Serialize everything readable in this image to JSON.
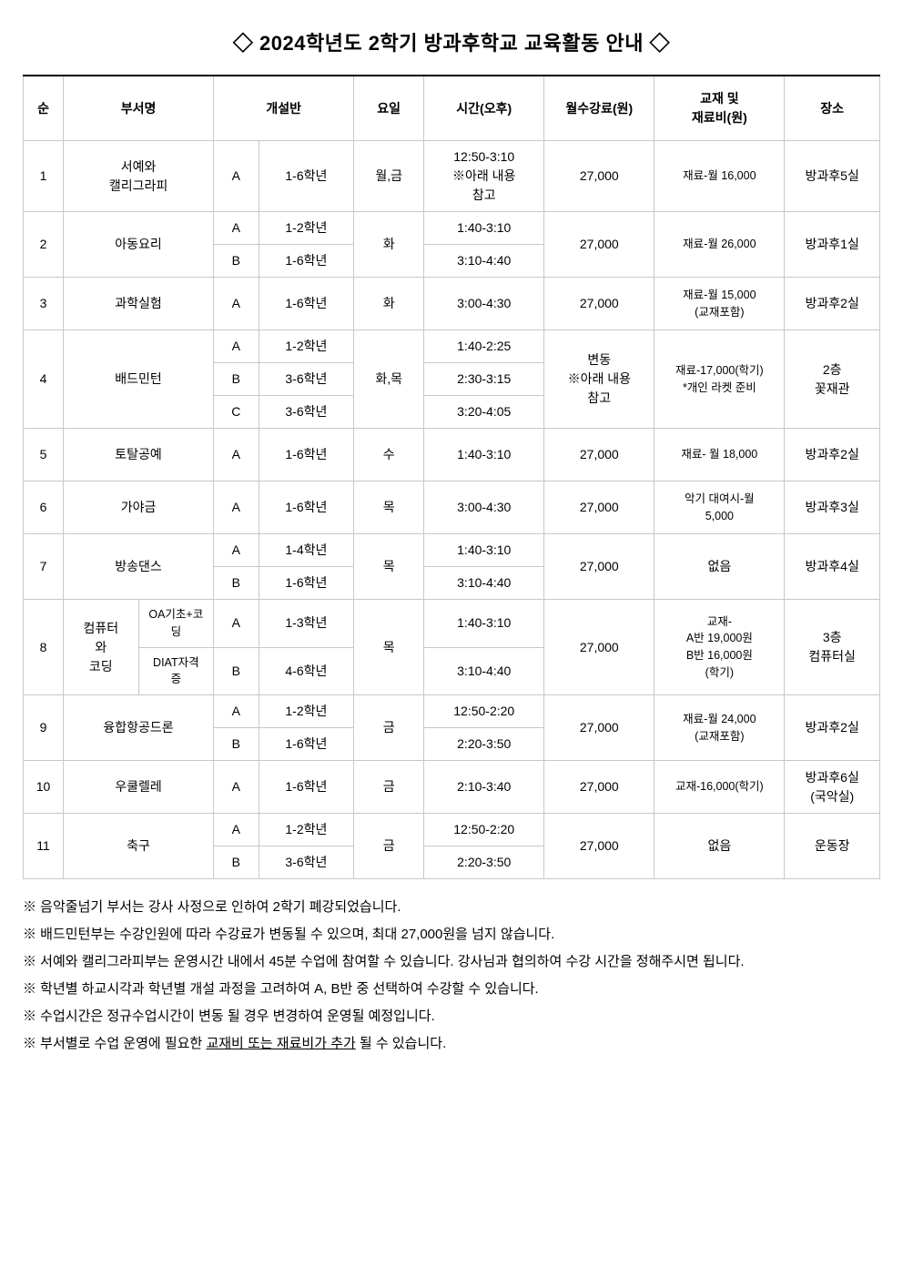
{
  "title": "◇ 2024학년도 2학기 방과후학교 교육활동 안내 ◇",
  "headers": {
    "no": "순",
    "dept": "부서명",
    "class": "개설반",
    "day": "요일",
    "time": "시간(오후)",
    "fee": "월수강료(원)",
    "material": "교재 및\n재료비(원)",
    "location": "장소"
  },
  "rows": {
    "r1": {
      "no": "1",
      "dept": "서예와\n캘리그라피",
      "cls": "A",
      "grade": "1-6학년",
      "day": "월,금",
      "time": "12:50-3:10\n※아래 내용\n참고",
      "fee": "27,000",
      "mat": "재료-월 16,000",
      "loc": "방과후5실"
    },
    "r2": {
      "no": "2",
      "dept": "아동요리",
      "clsA": "A",
      "gradeA": "1-2학년",
      "clsB": "B",
      "gradeB": "1-6학년",
      "day": "화",
      "timeA": "1:40-3:10",
      "timeB": "3:10-4:40",
      "fee": "27,000",
      "mat": "재료-월 26,000",
      "loc": "방과후1실"
    },
    "r3": {
      "no": "3",
      "dept": "과학실험",
      "cls": "A",
      "grade": "1-6학년",
      "day": "화",
      "time": "3:00-4:30",
      "fee": "27,000",
      "mat": "재료-월 15,000\n(교재포함)",
      "loc": "방과후2실"
    },
    "r4": {
      "no": "4",
      "dept": "배드민턴",
      "clsA": "A",
      "gradeA": "1-2학년",
      "clsB": "B",
      "gradeB": "3-6학년",
      "clsC": "C",
      "gradeC": "3-6학년",
      "day": "화,목",
      "timeA": "1:40-2:25",
      "timeB": "2:30-3:15",
      "timeC": "3:20-4:05",
      "fee": "변동\n※아래 내용\n참고",
      "mat": "재료-17,000(학기)\n*개인 라켓 준비",
      "loc": "2층\n꽃재관"
    },
    "r5": {
      "no": "5",
      "dept": "토탈공예",
      "cls": "A",
      "grade": "1-6학년",
      "day": "수",
      "time": "1:40-3:10",
      "fee": "27,000",
      "mat": "재료- 월 18,000",
      "loc": "방과후2실"
    },
    "r6": {
      "no": "6",
      "dept": "가야금",
      "cls": "A",
      "grade": "1-6학년",
      "day": "목",
      "time": "3:00-4:30",
      "fee": "27,000",
      "mat": "악기 대여시-월\n5,000",
      "loc": "방과후3실"
    },
    "r7": {
      "no": "7",
      "dept": "방송댄스",
      "clsA": "A",
      "gradeA": "1-4학년",
      "clsB": "B",
      "gradeB": "1-6학년",
      "day": "목",
      "timeA": "1:40-3:10",
      "timeB": "3:10-4:40",
      "fee": "27,000",
      "mat": "없음",
      "loc": "방과후4실"
    },
    "r8": {
      "no": "8",
      "dept1": "컴퓨터\n와\n코딩",
      "sub1": "OA기초+코\n딩",
      "sub2": "DIAT자격\n증",
      "clsA": "A",
      "gradeA": "1-3학년",
      "clsB": "B",
      "gradeB": "4-6학년",
      "day": "목",
      "timeA": "1:40-3:10",
      "timeB": "3:10-4:40",
      "fee": "27,000",
      "mat": "교재-\nA반 19,000원\nB반 16,000원\n(학기)",
      "loc": "3층\n컴퓨터실"
    },
    "r9": {
      "no": "9",
      "dept": "융합항공드론",
      "clsA": "A",
      "gradeA": "1-2학년",
      "clsB": "B",
      "gradeB": "1-6학년",
      "day": "금",
      "timeA": "12:50-2:20",
      "timeB": "2:20-3:50",
      "fee": "27,000",
      "mat": "재료-월 24,000\n(교재포함)",
      "loc": "방과후2실"
    },
    "r10": {
      "no": "10",
      "dept": "우쿨렐레",
      "cls": "A",
      "grade": "1-6학년",
      "day": "금",
      "time": "2:10-3:40",
      "fee": "27,000",
      "mat": "교재-16,000(학기)",
      "loc": "방과후6실\n(국악실)"
    },
    "r11": {
      "no": "11",
      "dept": "축구",
      "clsA": "A",
      "gradeA": "1-2학년",
      "clsB": "B",
      "gradeB": "3-6학년",
      "day": "금",
      "timeA": "12:50-2:20",
      "timeB": "2:20-3:50",
      "fee": "27,000",
      "mat": "없음",
      "loc": "운동장"
    }
  },
  "notes": {
    "n1": "※ 음악줄넘기 부서는 강사 사정으로 인하여 2학기 폐강되었습니다.",
    "n2": "※ 배드민턴부는 수강인원에 따라 수강료가 변동될 수 있으며, 최대 27,000원을 넘지 않습니다.",
    "n3": "※ 서예와 캘리그라피부는 운영시간 내에서 45분 수업에 참여할 수 있습니다. 강사님과 협의하여 수강 시간을 정해주시면 됩니다.",
    "n4": "※ 학년별 하교시각과 학년별 개설 과정을 고려하여 A, B반 중 선택하여 수강할 수 있습니다.",
    "n5": "※ 수업시간은 정규수업시간이 변동 될 경우 변경하여 운영될 예정입니다.",
    "n6a": "※ 부서별로 수업 운영에 필요한 ",
    "n6b": "교재비 또는 재료비가 추가",
    "n6c": " 될 수 있습니다."
  }
}
